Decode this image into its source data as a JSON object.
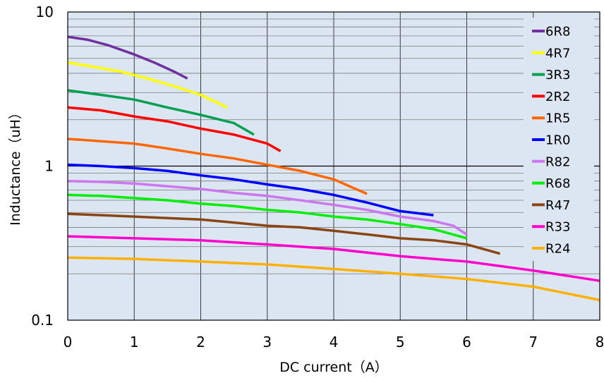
{
  "chart_data": {
    "type": "line",
    "title": "",
    "xlabel": "DC current（A）",
    "ylabel": "Inductance（uH）",
    "xlim": [
      0,
      8
    ],
    "ylim": [
      0.1,
      10
    ],
    "yscale": "log",
    "grid": true,
    "legend_position": "top-right",
    "background_color": "#dce6f2",
    "x_ticks": [
      "0",
      "1",
      "2",
      "3",
      "4",
      "5",
      "6",
      "7",
      "8"
    ],
    "y_ticks": [
      "0.1",
      "1",
      "10"
    ],
    "series": [
      {
        "name": "6R8",
        "color": "#7030a0",
        "points": [
          [
            0,
            6.9
          ],
          [
            0.3,
            6.6
          ],
          [
            0.6,
            6.1
          ],
          [
            1.0,
            5.3
          ],
          [
            1.3,
            4.7
          ],
          [
            1.6,
            4.1
          ],
          [
            1.8,
            3.7
          ]
        ]
      },
      {
        "name": "4R7",
        "color": "#ffff00",
        "points": [
          [
            0,
            4.7
          ],
          [
            0.4,
            4.4
          ],
          [
            0.8,
            4.1
          ],
          [
            1.2,
            3.7
          ],
          [
            1.6,
            3.3
          ],
          [
            2.0,
            2.9
          ],
          [
            2.4,
            2.4
          ]
        ]
      },
      {
        "name": "3R3",
        "color": "#00a050",
        "points": [
          [
            0,
            3.1
          ],
          [
            0.5,
            2.9
          ],
          [
            1.0,
            2.7
          ],
          [
            1.5,
            2.4
          ],
          [
            2.0,
            2.15
          ],
          [
            2.5,
            1.9
          ],
          [
            2.8,
            1.6
          ]
        ]
      },
      {
        "name": "2R2",
        "color": "#ff0000",
        "points": [
          [
            0,
            2.4
          ],
          [
            0.5,
            2.3
          ],
          [
            1.0,
            2.1
          ],
          [
            1.5,
            1.95
          ],
          [
            2.0,
            1.75
          ],
          [
            2.5,
            1.6
          ],
          [
            3.0,
            1.4
          ],
          [
            3.2,
            1.25
          ]
        ]
      },
      {
        "name": "1R5",
        "color": "#ff6600",
        "points": [
          [
            0,
            1.5
          ],
          [
            0.5,
            1.45
          ],
          [
            1.0,
            1.4
          ],
          [
            1.5,
            1.3
          ],
          [
            2.0,
            1.2
          ],
          [
            2.5,
            1.12
          ],
          [
            3.0,
            1.02
          ],
          [
            3.5,
            0.93
          ],
          [
            4.0,
            0.82
          ],
          [
            4.5,
            0.66
          ]
        ]
      },
      {
        "name": "1R0",
        "color": "#0000ff",
        "points": [
          [
            0,
            1.02
          ],
          [
            0.5,
            1.0
          ],
          [
            1.0,
            0.97
          ],
          [
            1.5,
            0.93
          ],
          [
            2.0,
            0.87
          ],
          [
            2.5,
            0.82
          ],
          [
            3.0,
            0.76
          ],
          [
            3.5,
            0.71
          ],
          [
            4.0,
            0.65
          ],
          [
            4.5,
            0.58
          ],
          [
            5.0,
            0.51
          ],
          [
            5.5,
            0.48
          ]
        ]
      },
      {
        "name": "R82",
        "color": "#cc77ee",
        "points": [
          [
            0,
            0.8
          ],
          [
            0.5,
            0.79
          ],
          [
            1.0,
            0.77
          ],
          [
            1.5,
            0.74
          ],
          [
            2.0,
            0.71
          ],
          [
            2.5,
            0.67
          ],
          [
            3.0,
            0.64
          ],
          [
            3.5,
            0.6
          ],
          [
            4.0,
            0.56
          ],
          [
            4.5,
            0.52
          ],
          [
            5.0,
            0.47
          ],
          [
            5.5,
            0.44
          ],
          [
            5.8,
            0.41
          ],
          [
            6.0,
            0.36
          ]
        ]
      },
      {
        "name": "R68",
        "color": "#00ee00",
        "points": [
          [
            0,
            0.65
          ],
          [
            0.5,
            0.64
          ],
          [
            1.0,
            0.62
          ],
          [
            1.5,
            0.6
          ],
          [
            2.0,
            0.57
          ],
          [
            2.5,
            0.55
          ],
          [
            3.0,
            0.52
          ],
          [
            3.5,
            0.5
          ],
          [
            4.0,
            0.47
          ],
          [
            4.5,
            0.45
          ],
          [
            5.0,
            0.42
          ],
          [
            5.5,
            0.39
          ],
          [
            6.0,
            0.34
          ]
        ]
      },
      {
        "name": "R47",
        "color": "#8b4513",
        "points": [
          [
            0,
            0.49
          ],
          [
            0.5,
            0.48
          ],
          [
            1.0,
            0.47
          ],
          [
            1.5,
            0.46
          ],
          [
            2.0,
            0.45
          ],
          [
            2.5,
            0.43
          ],
          [
            3.0,
            0.41
          ],
          [
            3.5,
            0.4
          ],
          [
            4.0,
            0.38
          ],
          [
            4.5,
            0.36
          ],
          [
            5.0,
            0.34
          ],
          [
            5.5,
            0.33
          ],
          [
            6.0,
            0.31
          ],
          [
            6.5,
            0.27
          ]
        ]
      },
      {
        "name": "R33",
        "color": "#ff00cc",
        "points": [
          [
            0,
            0.35
          ],
          [
            1.0,
            0.34
          ],
          [
            2.0,
            0.33
          ],
          [
            3.0,
            0.31
          ],
          [
            4.0,
            0.29
          ],
          [
            5.0,
            0.26
          ],
          [
            6.0,
            0.24
          ],
          [
            7.0,
            0.21
          ],
          [
            8.0,
            0.18
          ]
        ]
      },
      {
        "name": "R24",
        "color": "#ffb000",
        "points": [
          [
            0,
            0.255
          ],
          [
            1.0,
            0.25
          ],
          [
            2.0,
            0.24
          ],
          [
            3.0,
            0.23
          ],
          [
            4.0,
            0.215
          ],
          [
            5.0,
            0.2
          ],
          [
            6.0,
            0.185
          ],
          [
            7.0,
            0.165
          ],
          [
            8.0,
            0.135
          ]
        ]
      }
    ]
  }
}
